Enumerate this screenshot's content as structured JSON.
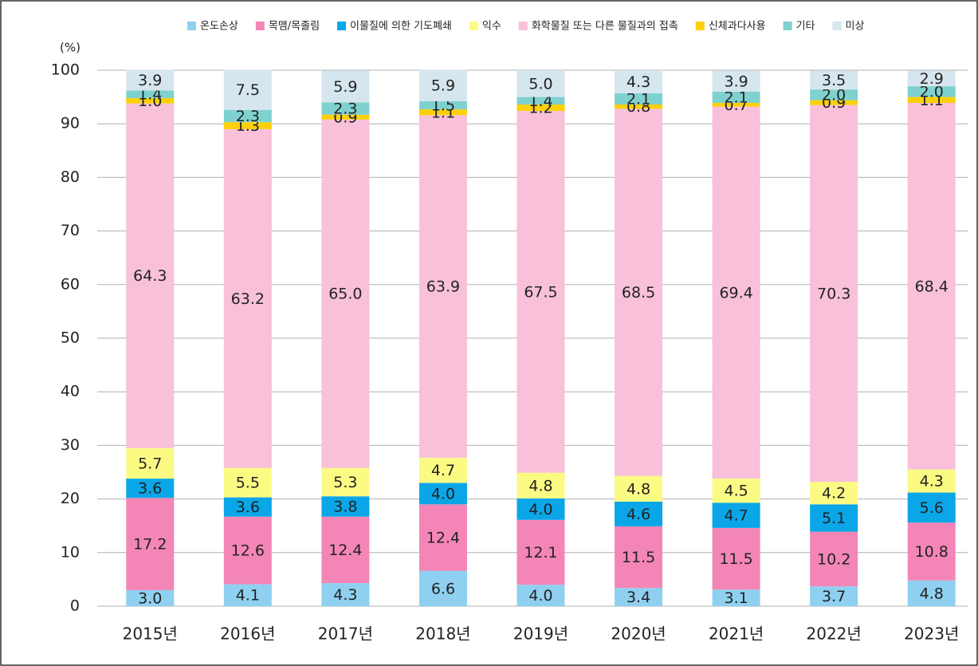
{
  "chart_data": {
    "type": "stacked_bar",
    "y_label": "(%)",
    "categories": [
      "2015년",
      "2016년",
      "2017년",
      "2018년",
      "2019년",
      "2020년",
      "2021년",
      "2022년",
      "2023년"
    ],
    "ylim": [
      0,
      100
    ],
    "yticks": [
      0,
      10,
      20,
      30,
      40,
      50,
      60,
      70,
      80,
      90,
      100
    ],
    "grid": true,
    "legend": "top",
    "series": [
      {
        "name": "온도손상",
        "color": "#8fd0f0",
        "values": [
          3.0,
          4.1,
          4.3,
          6.6,
          4.0,
          3.4,
          3.1,
          3.7,
          4.8
        ],
        "value_labels": [
          "3.0",
          "4.1",
          "4.3",
          "6.6",
          "4.0",
          "3.4",
          "3.1",
          "3.7",
          "4.8"
        ]
      },
      {
        "name": "목맴/목졸림",
        "color": "#f386b6",
        "values": [
          17.2,
          12.6,
          12.4,
          12.4,
          12.1,
          11.5,
          11.5,
          10.2,
          10.8
        ],
        "value_labels": [
          "17.2",
          "12.6",
          "12.4",
          "12.4",
          "12.1",
          "11.5",
          "11.5",
          "10.2",
          "10.8"
        ]
      },
      {
        "name": "이물질에 의한 기도폐쇄",
        "color": "#0aa6e8",
        "values": [
          3.6,
          3.6,
          3.8,
          4.0,
          4.0,
          4.6,
          4.7,
          5.1,
          5.6
        ],
        "value_labels": [
          "3.6",
          "3.6",
          "3.8",
          "4.0",
          "4.0",
          "4.6",
          "4.7",
          "5.1",
          "5.6"
        ]
      },
      {
        "name": "익수",
        "color": "#fbfb84",
        "values": [
          5.7,
          5.5,
          5.3,
          4.7,
          4.8,
          4.8,
          4.5,
          4.2,
          4.3
        ],
        "value_labels": [
          "5.7",
          "5.5",
          "5.3",
          "4.7",
          "4.8",
          "4.8",
          "4.5",
          "4.2",
          "4.3"
        ]
      },
      {
        "name": "화학물질 또는 다른 물질과의 접촉",
        "color": "#f9c0da",
        "values": [
          64.3,
          63.2,
          65.0,
          63.9,
          67.5,
          68.5,
          69.4,
          70.3,
          68.4
        ],
        "value_labels": [
          "64.3",
          "63.2",
          "65.0",
          "63.9",
          "67.5",
          "68.5",
          "69.4",
          "70.3",
          "68.4"
        ]
      },
      {
        "name": "신체과다사용",
        "color": "#fcd008",
        "values": [
          1.0,
          1.3,
          0.9,
          1.1,
          1.2,
          0.8,
          0.7,
          0.9,
          1.1
        ],
        "value_labels": [
          "1.0",
          "1.3",
          "0.9",
          "1.1",
          "1.2",
          "0.8",
          "0.7",
          "0.9",
          "1.1"
        ]
      },
      {
        "name": "기타",
        "color": "#7fd1cf",
        "values": [
          1.4,
          2.3,
          2.3,
          1.5,
          1.4,
          2.1,
          2.1,
          2.0,
          2.0
        ],
        "value_labels": [
          "1.4",
          "2.3",
          "2.3",
          "1.5",
          "1.4",
          "2.1",
          "2.1",
          "2.0",
          "2.0"
        ]
      },
      {
        "name": "미상",
        "color": "#d6e6ee",
        "values": [
          3.9,
          7.5,
          5.9,
          5.9,
          5.0,
          4.3,
          3.9,
          3.5,
          2.9
        ],
        "value_labels": [
          "3.9",
          "7.5",
          "5.9",
          "5.9",
          "5.0",
          "4.3",
          "3.9",
          "3.5",
          "2.9"
        ]
      }
    ]
  }
}
